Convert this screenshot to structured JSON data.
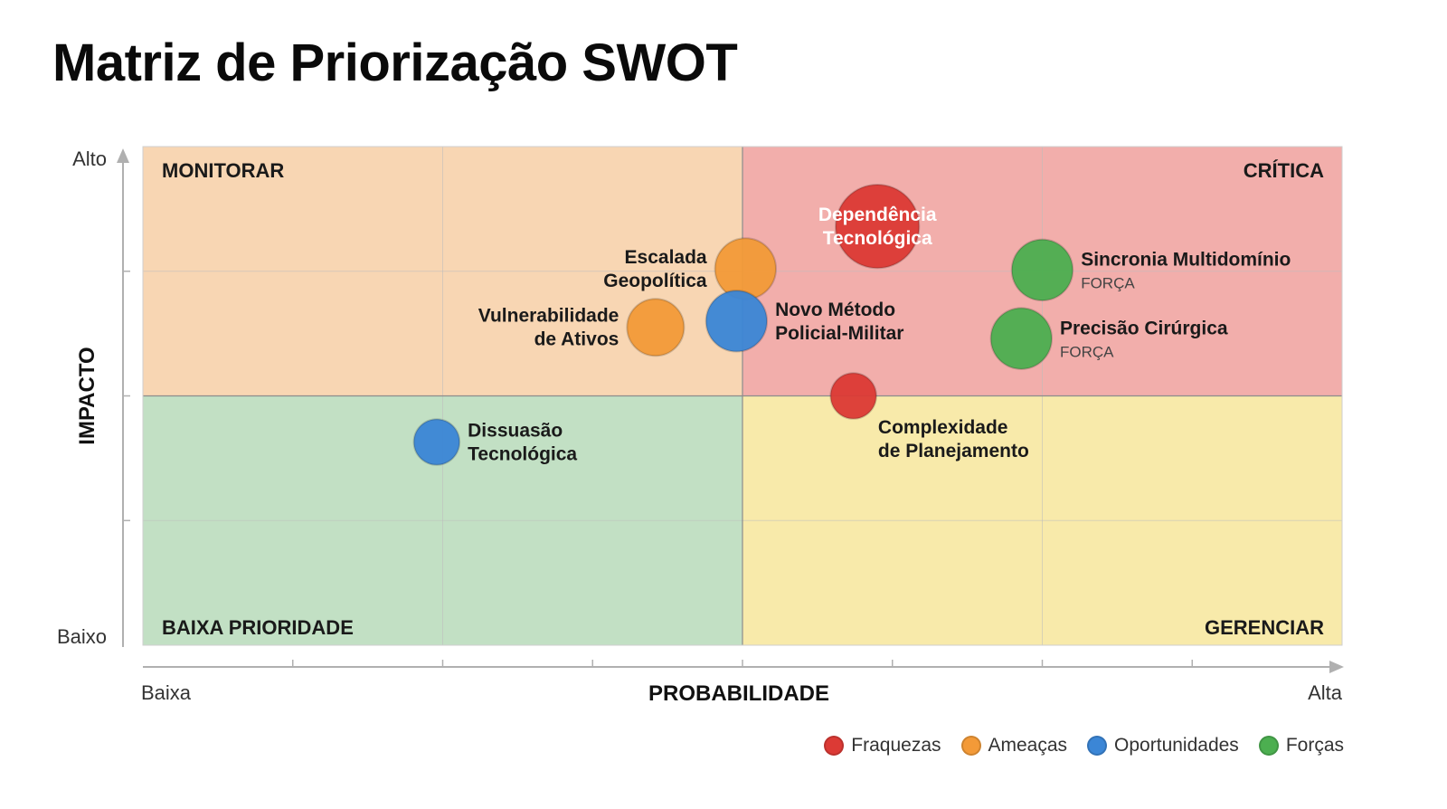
{
  "title": "Matriz de Priorização SWOT",
  "chart_data": {
    "type": "scatter",
    "title": "Matriz de Priorização SWOT",
    "xlabel": "PROBABILIDADE",
    "ylabel": "IMPACTO",
    "x_low_label": "Baixa",
    "x_high_label": "Alta",
    "y_low_label": "Baixo",
    "y_high_label": "Alto",
    "xlim": [
      0,
      4
    ],
    "ylim": [
      0,
      4
    ],
    "grid": true,
    "legend_position": "bottom-right",
    "quadrants": [
      {
        "key": "top-left",
        "label": "MONITORAR",
        "color": "#F8D6B3"
      },
      {
        "key": "top-right",
        "label": "CRÍTICA",
        "color": "#F2AEAB"
      },
      {
        "key": "bottom-left",
        "label": "BAIXA PRIORIDADE",
        "color": "#C2E0C4"
      },
      {
        "key": "bottom-right",
        "label": "GERENCIAR",
        "color": "#F8EAAA"
      }
    ],
    "categories": [
      {
        "key": "fraquezas",
        "name": "Fraquezas",
        "color": "#DC3A35"
      },
      {
        "key": "ameacas",
        "name": "Ameaças",
        "color": "#F39A38"
      },
      {
        "key": "oportunidades",
        "name": "Oportunidades",
        "color": "#3B86D6"
      },
      {
        "key": "forcas",
        "name": "Forças",
        "color": "#4CAF50"
      }
    ],
    "points": [
      {
        "label": [
          "Dependência",
          "Tecnológica"
        ],
        "category": "fraquezas",
        "x": 2.45,
        "y": 3.36,
        "size": 3.0,
        "label_pos": "inside"
      },
      {
        "label": [
          "Escalada",
          "Geopolítica"
        ],
        "category": "ameacas",
        "x": 2.01,
        "y": 3.02,
        "size": 1.6,
        "label_pos": "left"
      },
      {
        "label": [
          "Sincronia Multidomínio"
        ],
        "sublabel": "FORÇA",
        "category": "forcas",
        "x": 3.0,
        "y": 3.01,
        "size": 1.6,
        "label_pos": "right"
      },
      {
        "label": [
          "Vulnerabilidade",
          "de Ativos"
        ],
        "category": "ameacas",
        "x": 1.71,
        "y": 2.55,
        "size": 1.4,
        "label_pos": "left"
      },
      {
        "label": [
          "Novo Método",
          "Policial-Militar"
        ],
        "category": "oportunidades",
        "x": 1.98,
        "y": 2.6,
        "size": 1.6,
        "label_pos": "right"
      },
      {
        "label": [
          "Precisão Cirúrgica"
        ],
        "sublabel": "FORÇA",
        "category": "forcas",
        "x": 2.93,
        "y": 2.46,
        "size": 1.6,
        "label_pos": "right"
      },
      {
        "label": [
          "Complexidade",
          "de Planejamento"
        ],
        "category": "fraquezas",
        "x": 2.37,
        "y": 2.0,
        "size": 0.9,
        "label_pos": "below-right"
      },
      {
        "label": [
          "Dissuasão",
          "Tecnológica"
        ],
        "category": "oportunidades",
        "x": 0.98,
        "y": 1.63,
        "size": 0.9,
        "label_pos": "right"
      }
    ]
  }
}
